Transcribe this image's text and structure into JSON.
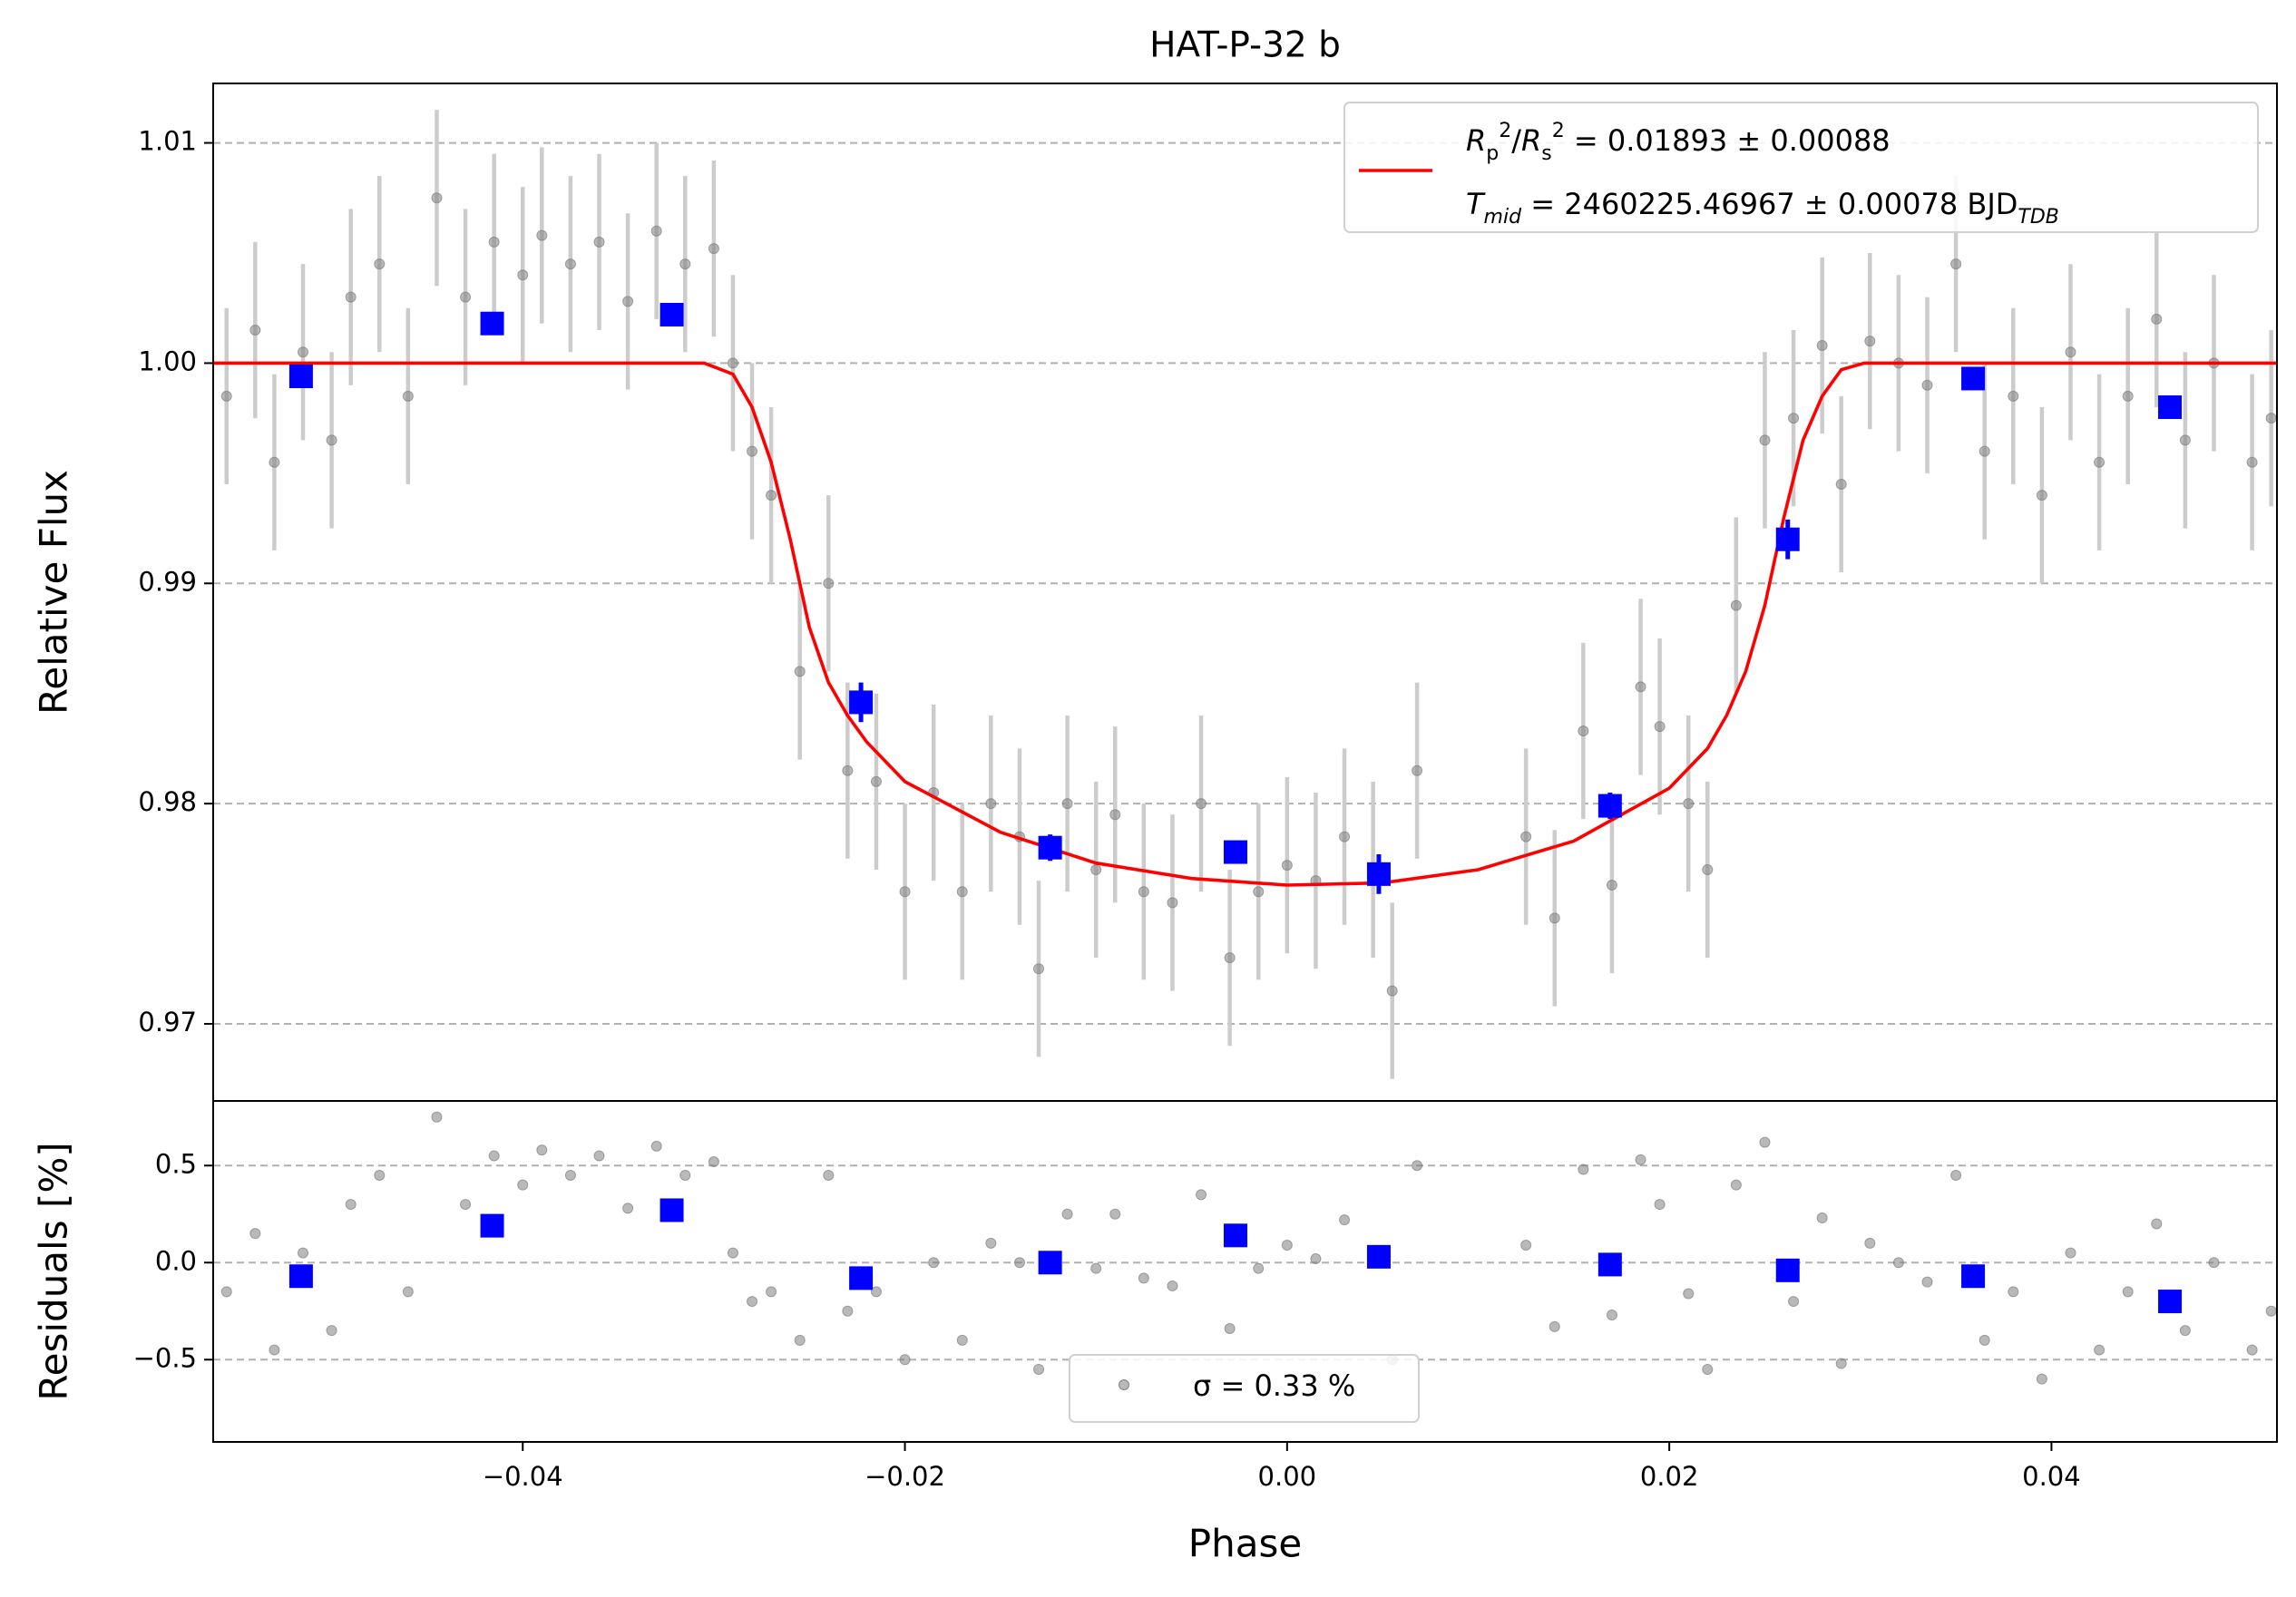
{
  "chart_data": [
    {
      "type": "scatter",
      "title": "HAT-P-32 b",
      "y_label": "Relative Flux",
      "xlim": [
        -0.0562,
        0.0518
      ],
      "ylim": [
        0.9665,
        1.0127
      ],
      "yticks": [
        1.01,
        {
          "value": 1.0,
          "label": "1.00"
        },
        0.99,
        0.98,
        0.97
      ],
      "grid": true,
      "legend": "upper right",
      "series": [
        {
          "color": "#808080",
          "error_color": "#cccccc",
          "marker": "circle",
          "errors": 0.004,
          "x": [
            -0.0555,
            -0.054,
            -0.053,
            -0.0515,
            -0.05,
            -0.049,
            -0.0475,
            -0.046,
            -0.0445,
            -0.043,
            -0.0415,
            -0.04,
            -0.039,
            -0.0375,
            -0.036,
            -0.0345,
            -0.033,
            -0.0315,
            -0.03,
            -0.029,
            -0.028,
            -0.027,
            -0.0255,
            -0.024,
            -0.023,
            -0.0215,
            -0.02,
            -0.0185,
            -0.017,
            -0.0155,
            -0.014,
            -0.013,
            -0.0115,
            -0.01,
            -0.009,
            -0.0075,
            -0.006,
            -0.0045,
            -0.003,
            -0.0015,
            0,
            0.0015,
            0.003,
            0.0045,
            0.0055,
            0.0068,
            0.0125,
            0.014,
            0.0155,
            0.017,
            0.0185,
            0.0195,
            0.021,
            0.022,
            0.0235,
            0.025,
            0.0265,
            0.028,
            0.029,
            0.0305,
            0.032,
            0.0335,
            0.035,
            0.0365,
            0.038,
            0.0395,
            0.041,
            0.0425,
            0.044,
            0.0455,
            0.047,
            0.0485,
            0.0505,
            0.0515
          ],
          "values": [
            0.9985,
            1.0015,
            0.9955,
            1.0005,
            0.9965,
            1.003,
            1.0045,
            0.9985,
            1.0075,
            1.003,
            1.0055,
            1.004,
            1.0058,
            1.0045,
            1.0055,
            1.0028,
            1.006,
            1.0045,
            1.0052,
            1.0,
            0.996,
            0.994,
            0.986,
            0.99,
            0.9815,
            0.981,
            0.976,
            0.9805,
            0.976,
            0.98,
            0.9785,
            0.9725,
            0.98,
            0.977,
            0.9795,
            0.976,
            0.9755,
            0.98,
            0.973,
            0.976,
            0.9772,
            0.9765,
            0.9785,
            0.977,
            0.9715,
            0.9815,
            0.9785,
            0.9748,
            0.9833,
            0.9763,
            0.9853,
            0.9835,
            0.98,
            0.977,
            0.989,
            0.9965,
            0.9975,
            1.0008,
            0.9945,
            1.001,
            1.0,
            0.999,
            1.0045,
            0.996,
            0.9985,
            0.994,
            1.0005,
            0.9955,
            0.9985,
            1.002,
            0.9965,
            1.0,
            0.9955,
            0.9975
          ]
        },
        {
          "name": [
            [
              "R",
              "p",
              "2",
              "/",
              "R",
              "s",
              "2",
              " = 0.01893 ± 0.00088"
            ],
            [
              "T",
              "mid",
              " = 2460225.46967 ± 0.00078 BJD",
              "TDB"
            ]
          ],
          "name_format": [
            [
              "italic",
              "sub",
              "sup",
              "normal",
              "italic",
              "sub",
              "sup",
              "normal"
            ],
            [
              "italic",
              "sub-italic",
              "normal",
              "sub-italic"
            ]
          ],
          "color": "#ff0000",
          "marker": "line",
          "x": [
            -0.0562,
            -0.0305,
            -0.029,
            -0.028,
            -0.027,
            -0.026,
            -0.025,
            -0.024,
            -0.023,
            -0.022,
            -0.02,
            -0.015,
            -0.01,
            -0.005,
            0,
            0.005,
            0.01,
            0.015,
            0.02,
            0.022,
            0.023,
            0.024,
            0.025,
            0.026,
            0.027,
            0.028,
            0.029,
            0.0302,
            0.0518
          ],
          "values": [
            1.0,
            1.0,
            0.9995,
            0.998,
            0.9955,
            0.992,
            0.988,
            0.9855,
            0.984,
            0.9828,
            0.981,
            0.9787,
            0.9773,
            0.9766,
            0.9763,
            0.9764,
            0.977,
            0.9783,
            0.9807,
            0.9825,
            0.984,
            0.986,
            0.989,
            0.993,
            0.9965,
            0.9985,
            0.9997,
            1.0,
            1.0
          ]
        },
        {
          "color": "#0000ff",
          "marker": "square",
          "x": [
            -0.0516,
            -0.0416,
            -0.0322,
            -0.0223,
            -0.0124,
            -0.0027,
            0.0048,
            0.0169,
            0.0262,
            0.0359,
            0.0462
          ],
          "values": [
            0.9994,
            1.0018,
            1.0022,
            0.9846,
            0.978,
            0.9778,
            0.9768,
            0.9799,
            0.992,
            0.9993,
            0.998
          ],
          "errors": [
            0.0005,
            0.0005,
            0.0005,
            0.0009,
            0.0006,
            0.0005,
            0.0009,
            0.0006,
            0.0009,
            0.0005,
            0.0005
          ]
        }
      ]
    },
    {
      "type": "scatter",
      "x_label": "Phase",
      "y_label": "Residuals [%]",
      "xlim": [
        -0.0562,
        0.0518
      ],
      "ylim": [
        -0.924,
        0.833
      ],
      "xticks": [
        {
          "value": -0.04,
          "label": "−0.04"
        },
        {
          "value": -0.02,
          "label": "−0.02"
        },
        {
          "value": 0,
          "label": "0.00"
        },
        0.02,
        0.04
      ],
      "yticks": [
        0.5,
        {
          "value": 0,
          "label": "0.0"
        },
        {
          "value": -0.5,
          "label": "−0.5"
        }
      ],
      "grid": true,
      "legend": "lower center",
      "series": [
        {
          "name": "σ = 0.33 %",
          "color": "#808080",
          "marker": "circle",
          "x": [
            -0.0555,
            -0.054,
            -0.053,
            -0.0515,
            -0.05,
            -0.049,
            -0.0475,
            -0.046,
            -0.0445,
            -0.043,
            -0.0415,
            -0.04,
            -0.039,
            -0.0375,
            -0.036,
            -0.0345,
            -0.033,
            -0.0315,
            -0.03,
            -0.029,
            -0.028,
            -0.027,
            -0.0255,
            -0.024,
            -0.023,
            -0.0215,
            -0.02,
            -0.0185,
            -0.017,
            -0.0155,
            -0.014,
            -0.013,
            -0.0115,
            -0.01,
            -0.009,
            -0.0075,
            -0.006,
            -0.0045,
            -0.003,
            -0.0015,
            0,
            0.0015,
            0.003,
            0.0045,
            0.0055,
            0.0068,
            0.0125,
            0.014,
            0.0155,
            0.017,
            0.0185,
            0.0195,
            0.021,
            0.022,
            0.0235,
            0.025,
            0.0265,
            0.028,
            0.029,
            0.0305,
            0.032,
            0.0335,
            0.035,
            0.0365,
            0.038,
            0.0395,
            0.041,
            0.0425,
            0.044,
            0.0455,
            0.047,
            0.0485,
            0.0505,
            0.0515
          ],
          "values": [
            -0.15,
            0.15,
            -0.45,
            0.05,
            -0.35,
            0.3,
            0.45,
            -0.15,
            0.75,
            0.3,
            0.55,
            0.4,
            0.58,
            0.45,
            0.55,
            0.28,
            0.6,
            0.45,
            0.52,
            0.05,
            -0.2,
            -0.15,
            -0.4,
            0.45,
            -0.25,
            -0.15,
            -0.5,
            0.0,
            -0.4,
            0.1,
            0.0,
            -0.55,
            0.25,
            -0.03,
            0.25,
            -0.08,
            -0.12,
            0.35,
            -0.34,
            -0.03,
            0.09,
            0.02,
            0.22,
            0.06,
            -0.5,
            0.5,
            0.09,
            -0.33,
            0.48,
            -0.27,
            0.53,
            0.3,
            -0.16,
            -0.55,
            0.4,
            0.62,
            -0.2,
            0.23,
            -0.52,
            0.1,
            0.0,
            -0.1,
            0.45,
            -0.4,
            -0.15,
            -0.6,
            0.05,
            -0.45,
            -0.15,
            0.2,
            -0.35,
            0.0,
            -0.45,
            -0.25
          ]
        },
        {
          "color": "#0000ff",
          "marker": "square",
          "x": [
            -0.0516,
            -0.0416,
            -0.0322,
            -0.0223,
            -0.0124,
            -0.0027,
            0.0048,
            0.0169,
            0.0262,
            0.0359,
            0.0462
          ],
          "values": [
            -0.07,
            0.19,
            0.27,
            -0.08,
            0.0,
            0.14,
            0.03,
            -0.01,
            -0.04,
            -0.07,
            -0.2
          ]
        }
      ]
    }
  ]
}
